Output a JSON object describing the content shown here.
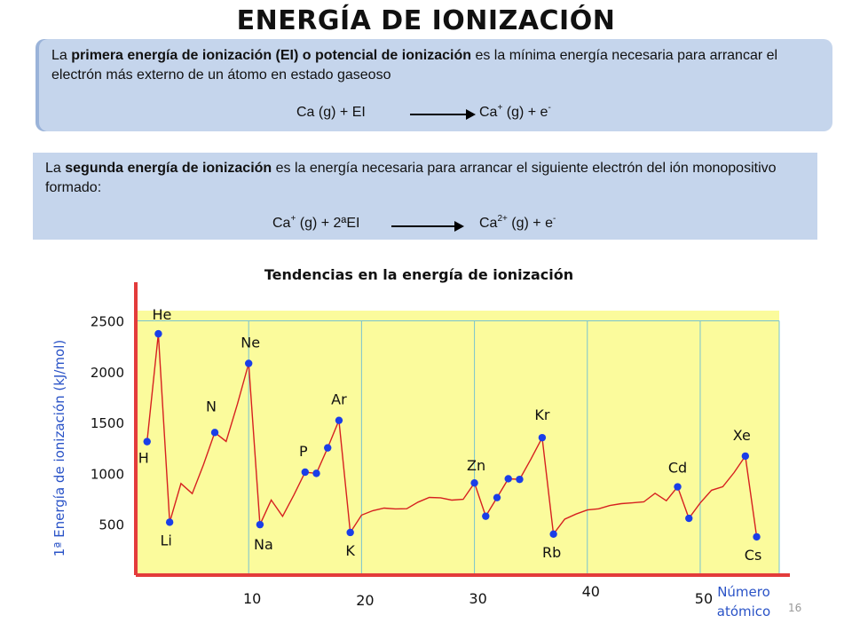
{
  "header": {
    "title": "ENERGÍA DE IONIZACIÓN"
  },
  "box1": {
    "text_before": "La ",
    "text_bold": "primera energía de ionización (EI) o potencial de ionización",
    "text_after": " es la mínima energía necesaria para arrancar el electrón más externo de un átomo en estado gaseoso",
    "eq_left": "Ca (g) + EI",
    "eq_right_base": "Ca",
    "eq_right_sup": "+",
    "eq_right_mid": " (g) + e",
    "eq_right_sup2": "-"
  },
  "box2": {
    "text_before": "La ",
    "text_bold": "segunda energía de ionización",
    "text_after": " es la energía necesaria para arrancar el siguiente electrón del ión monopositivo formado:",
    "eq_left_base": "Ca",
    "eq_left_sup": "+",
    "eq_left_rest": " (g) + 2ªEI",
    "eq_right_base": "Ca",
    "eq_right_sup": "2+",
    "eq_right_mid": " (g) + e",
    "eq_right_sup2": "-"
  },
  "page_number": "16",
  "colors": {
    "plot_bg": "#fbfb9c",
    "line": "#d62020",
    "marker": "#1a3ee8",
    "axis": "#e33b3b",
    "grid": "#79c3cf",
    "ylabel": "#2a53c7",
    "box": "#c5d5ec"
  },
  "chart_data": {
    "type": "line",
    "title": "Tendencias en la energía de ionización",
    "ylabel": "1ª Energía de ionización (kJ/mol)",
    "xlabel": "Número atómico",
    "xlim": [
      0,
      57
    ],
    "ylim": [
      0,
      2600
    ],
    "xticks": [
      10,
      20,
      30,
      40,
      50
    ],
    "yticks": [
      500,
      1000,
      1500,
      2000,
      2500
    ],
    "grid": true,
    "series": [
      {
        "x": [
          1,
          2,
          3,
          4,
          5,
          6,
          7,
          8,
          9,
          10,
          11,
          12,
          13,
          14,
          15,
          16,
          17,
          18,
          19,
          20,
          21,
          22,
          23,
          24,
          25,
          26,
          27,
          28,
          29,
          30,
          31,
          32,
          33,
          34,
          35,
          36,
          37,
          38,
          39,
          40,
          41,
          42,
          43,
          44,
          45,
          46,
          47,
          48,
          49,
          50,
          51,
          52,
          53,
          54,
          55
        ],
        "y": [
          1312,
          2372,
          520,
          900,
          801,
          1086,
          1402,
          1314,
          1681,
          2081,
          496,
          738,
          578,
          787,
          1012,
          1000,
          1251,
          1521,
          419,
          590,
          633,
          659,
          651,
          653,
          717,
          763,
          760,
          737,
          745,
          906,
          579,
          762,
          947,
          941,
          1140,
          1351,
          403,
          550,
          600,
          640,
          652,
          684,
          702,
          710,
          720,
          804,
          731,
          868,
          558,
          709,
          834,
          869,
          1008,
          1170,
          376
        ]
      }
    ],
    "highlighted_points": [
      {
        "label": "H",
        "x": 1,
        "y": 1312
      },
      {
        "label": "He",
        "x": 2,
        "y": 2372
      },
      {
        "label": "Li",
        "x": 3,
        "y": 520
      },
      {
        "label": "N",
        "x": 7,
        "y": 1402
      },
      {
        "label": "Ne",
        "x": 10,
        "y": 2081
      },
      {
        "label": "Na",
        "x": 11,
        "y": 496
      },
      {
        "label": "P",
        "x": 15,
        "y": 1012
      },
      {
        "label": "",
        "x": 16,
        "y": 1000
      },
      {
        "label": "",
        "x": 17,
        "y": 1251
      },
      {
        "label": "Ar",
        "x": 18,
        "y": 1521
      },
      {
        "label": "K",
        "x": 19,
        "y": 419
      },
      {
        "label": "Zn",
        "x": 30,
        "y": 906
      },
      {
        "label": "",
        "x": 31,
        "y": 579
      },
      {
        "label": "",
        "x": 32,
        "y": 762
      },
      {
        "label": "",
        "x": 33,
        "y": 947
      },
      {
        "label": "",
        "x": 34,
        "y": 941
      },
      {
        "label": "Kr",
        "x": 36,
        "y": 1351
      },
      {
        "label": "Rb",
        "x": 37,
        "y": 403
      },
      {
        "label": "Cd",
        "x": 48,
        "y": 868
      },
      {
        "label": "",
        "x": 49,
        "y": 558
      },
      {
        "label": "Xe",
        "x": 54,
        "y": 1170
      },
      {
        "label": "Cs",
        "x": 55,
        "y": 376
      }
    ]
  }
}
